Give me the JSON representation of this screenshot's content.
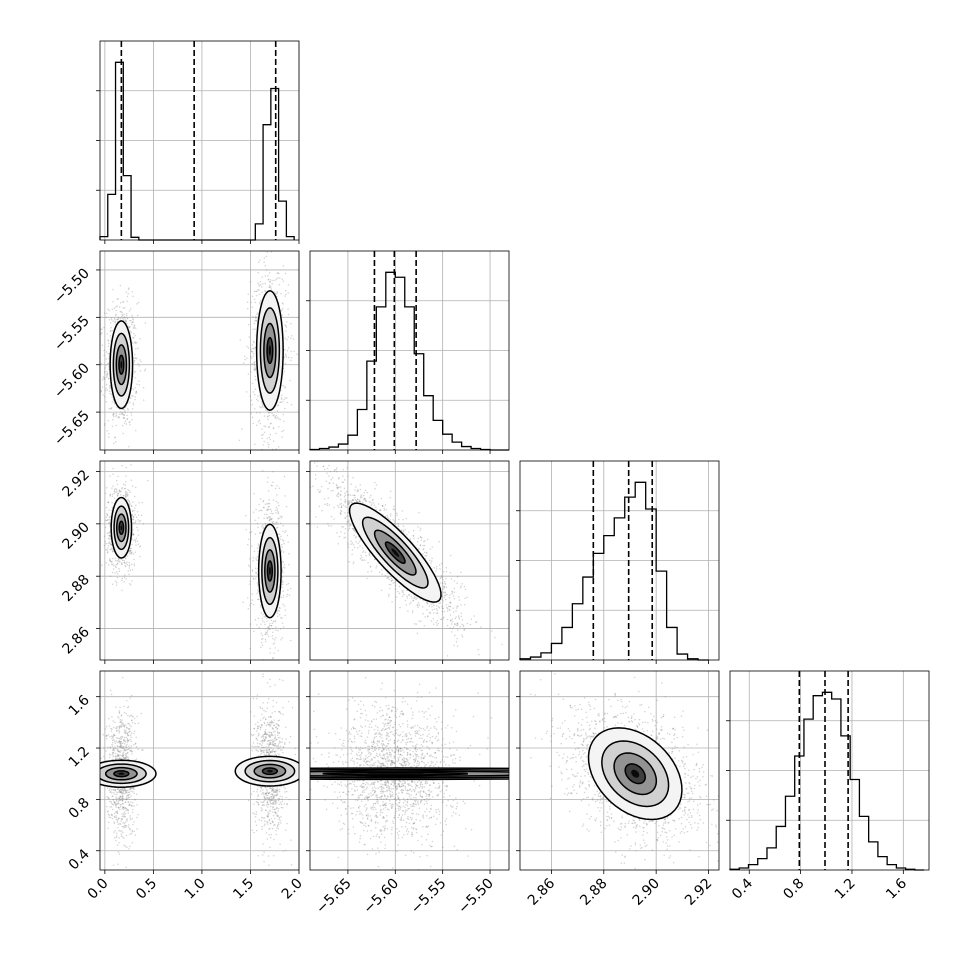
{
  "chart_data": {
    "type": "corner",
    "grid": true,
    "colors": {
      "hist_line": "#000000",
      "quantile_line": "#000000",
      "contour_line": "#000000",
      "scatter": "#808080",
      "density_fill": "#000000",
      "grid": "#b0b0b0"
    },
    "parameters": [
      {
        "range": [
          -0.05,
          2.0
        ],
        "ticks": [
          0.0,
          0.5,
          1.0,
          1.5,
          2.0
        ],
        "tick_labels": [
          "0.0",
          "0.5",
          "1.0",
          "1.5",
          "2.0"
        ],
        "quantiles": [
          0.17,
          0.92,
          1.76
        ],
        "hist": {
          "edges": [
            -0.05,
            0.03,
            0.11,
            0.19,
            0.27,
            0.35,
            0.43,
            0.51,
            0.59,
            0.67,
            0.75,
            0.83,
            0.91,
            0.99,
            1.07,
            1.15,
            1.23,
            1.31,
            1.39,
            1.47,
            1.55,
            1.63,
            1.71,
            1.79,
            1.87,
            1.95
          ],
          "counts": [
            0.05,
            0.68,
            2.65,
            0.96,
            0.04,
            0.0,
            0.0,
            0.0,
            0.0,
            0.0,
            0.0,
            0.0,
            0.0,
            0.0,
            0.0,
            0.0,
            0.0,
            0.0,
            0.0,
            0.0,
            0.24,
            1.72,
            2.26,
            0.58,
            0.05
          ]
        }
      },
      {
        "range": [
          -5.69,
          -5.48
        ],
        "ticks": [
          -5.65,
          -5.6,
          -5.55,
          -5.5
        ],
        "tick_labels": [
          "−5.65",
          "−5.60",
          "−5.55",
          "−5.50"
        ],
        "quantiles": [
          -5.622,
          -5.601,
          -5.578
        ],
        "hist": {
          "edges": [
            -5.69,
            -5.68,
            -5.67,
            -5.66,
            -5.65,
            -5.64,
            -5.63,
            -5.62,
            -5.61,
            -5.6,
            -5.59,
            -5.58,
            -5.57,
            -5.56,
            -5.55,
            -5.54,
            -5.53,
            -5.52,
            -5.51,
            -5.5,
            -5.49,
            -5.48
          ],
          "counts": [
            0.01,
            0.03,
            0.06,
            0.12,
            0.3,
            0.82,
            1.8,
            2.9,
            3.6,
            3.5,
            2.9,
            1.95,
            1.1,
            0.6,
            0.32,
            0.16,
            0.07,
            0.03,
            0.01,
            0.0,
            0.0
          ]
        }
      },
      {
        "range": [
          2.848,
          2.924
        ],
        "ticks": [
          2.86,
          2.88,
          2.9,
          2.92
        ],
        "tick_labels": [
          "2.86",
          "2.88",
          "2.90",
          "2.92"
        ],
        "quantiles": [
          2.876,
          2.8895,
          2.8985
        ],
        "hist": {
          "edges": [
            2.848,
            2.852,
            2.856,
            2.86,
            2.864,
            2.868,
            2.872,
            2.876,
            2.88,
            2.884,
            2.888,
            2.892,
            2.896,
            2.9,
            2.904,
            2.908,
            2.912,
            2.916,
            2.92
          ],
          "counts": [
            0.02,
            0.05,
            0.12,
            0.28,
            0.55,
            0.95,
            1.4,
            1.8,
            2.1,
            2.4,
            2.75,
            3.0,
            2.55,
            1.5,
            0.55,
            0.1,
            0.02,
            0.0
          ]
        }
      },
      {
        "range": [
          0.25,
          1.8
        ],
        "ticks": [
          0.4,
          0.8,
          1.2,
          1.6
        ],
        "tick_labels": [
          "0.4",
          "0.8",
          "1.2",
          "1.6"
        ],
        "quantiles": [
          0.79,
          0.99,
          1.17
        ],
        "hist": {
          "edges": [
            0.25,
            0.322,
            0.394,
            0.466,
            0.538,
            0.61,
            0.682,
            0.754,
            0.826,
            0.898,
            0.97,
            1.042,
            1.114,
            1.186,
            1.258,
            1.33,
            1.402,
            1.474,
            1.546,
            1.618,
            1.69,
            1.762
          ],
          "counts": [
            0.01,
            0.03,
            0.08,
            0.17,
            0.33,
            0.65,
            1.1,
            1.7,
            2.25,
            2.6,
            2.65,
            2.55,
            2.0,
            1.35,
            0.8,
            0.42,
            0.2,
            0.08,
            0.03,
            0.01,
            0.0
          ]
        }
      }
    ],
    "pairs": [
      {
        "row": 1,
        "col": 0,
        "corr": 0.0,
        "modes": [
          {
            "x": 0.17,
            "y": -5.6,
            "sx": 0.055,
            "sy": 0.022,
            "rho": 0.0,
            "w": 0.5
          },
          {
            "x": 1.7,
            "y": -5.585,
            "sx": 0.065,
            "sy": 0.03,
            "rho": 0.0,
            "w": 0.5
          }
        ]
      },
      {
        "row": 2,
        "col": 0,
        "corr": 0.0,
        "modes": [
          {
            "x": 0.17,
            "y": 2.8985,
            "sx": 0.05,
            "sy": 0.0055,
            "rho": 0.0,
            "w": 0.5
          },
          {
            "x": 1.7,
            "y": 2.882,
            "sx": 0.055,
            "sy": 0.0085,
            "rho": 0.0,
            "w": 0.5
          }
        ]
      },
      {
        "row": 2,
        "col": 1,
        "corr": -0.85,
        "modes": [
          {
            "x": -5.6,
            "y": 2.889,
            "sx": 0.023,
            "sy": 0.009,
            "rho": -0.85,
            "w": 1.0
          }
        ]
      },
      {
        "row": 3,
        "col": 0,
        "corr": 0.0,
        "modes": [
          {
            "x": 0.17,
            "y": 1.0,
            "sx": 0.05,
            "sy": 0.17,
            "rho": 0.0,
            "w": 0.5
          },
          {
            "x": 1.7,
            "y": 1.02,
            "sx": 0.055,
            "sy": 0.17,
            "rho": 0.0,
            "w": 0.5
          }
        ]
      },
      {
        "row": 3,
        "col": 1,
        "corr": 0.0,
        "modes": [
          {
            "x": -5.6,
            "y": 1.0,
            "sx": 0.021,
            "sy": 0.17,
            "rho": 0.0,
            "w": 1.0
          }
        ]
      },
      {
        "row": 3,
        "col": 2,
        "corr": -0.35,
        "modes": [
          {
            "x": 2.892,
            "y": 1.0,
            "sx": 0.0085,
            "sy": 0.17,
            "rho": -0.35,
            "w": 1.0
          }
        ]
      }
    ]
  }
}
